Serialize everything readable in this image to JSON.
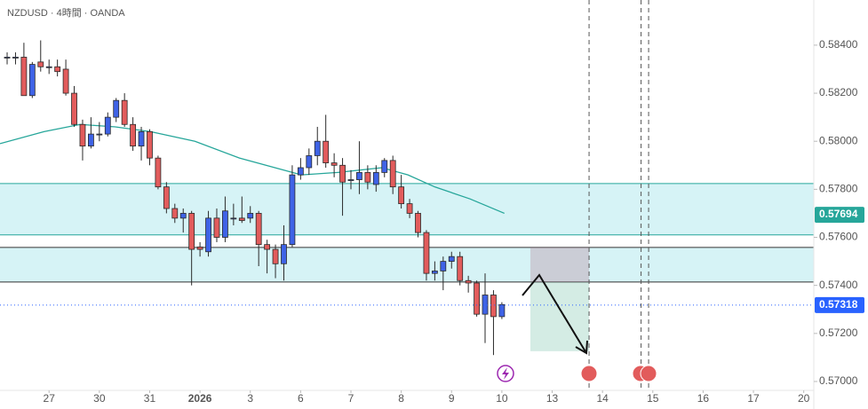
{
  "chart_data": {
    "type": "candlestick",
    "title": "NZDUSD · 4時間 · OANDA",
    "candles": {
      "up_color": "#3f63e6",
      "down_color": "#e25c5c",
      "outline": "#2a2a2a",
      "open": [
        0.5835,
        0.5835,
        0.5835,
        0.5819,
        0.5833,
        0.5831,
        0.5831,
        0.583,
        0.582,
        0.5807,
        0.5798,
        0.5803,
        0.5803,
        0.581,
        0.5817,
        0.5807,
        0.5798,
        0.5804,
        0.5793,
        0.5781,
        0.5772,
        0.5768,
        0.577,
        0.5756,
        0.5754,
        0.5768,
        0.576,
        0.5768,
        0.5768,
        0.5768,
        0.577,
        0.5757,
        0.5755,
        0.5749,
        0.5757,
        0.5786,
        0.5789,
        0.5794,
        0.58,
        0.5791,
        0.579,
        0.5784,
        0.5784,
        0.5787,
        0.5782,
        0.5787,
        0.5792,
        0.5781,
        0.5774,
        0.577,
        0.5762,
        0.5745,
        0.5746,
        0.575,
        0.5752,
        0.5742,
        0.5741,
        0.5728,
        0.5736,
        0.5727
      ],
      "high": [
        0.5837,
        0.5837,
        0.5841,
        0.5833,
        0.5842,
        0.5834,
        0.5834,
        0.5834,
        0.5823,
        0.5809,
        0.581,
        0.5808,
        0.5812,
        0.5818,
        0.582,
        0.581,
        0.5806,
        0.5805,
        0.5794,
        0.5783,
        0.5774,
        0.5772,
        0.5771,
        0.5758,
        0.5771,
        0.5772,
        0.5777,
        0.5774,
        0.5777,
        0.5773,
        0.5771,
        0.5759,
        0.5757,
        0.5765,
        0.579,
        0.5793,
        0.5797,
        0.5806,
        0.5811,
        0.5795,
        0.5793,
        0.5788,
        0.58,
        0.579,
        0.579,
        0.5793,
        0.5794,
        0.5786,
        0.5776,
        0.5771,
        0.5763,
        0.575,
        0.5752,
        0.5754,
        0.5754,
        0.5744,
        0.5742,
        0.5745,
        0.5738,
        0.5733
      ],
      "low": [
        0.5832,
        0.5832,
        0.5819,
        0.5818,
        0.5829,
        0.5828,
        0.5827,
        0.5819,
        0.5806,
        0.5792,
        0.5797,
        0.58,
        0.5802,
        0.5808,
        0.5806,
        0.5796,
        0.5792,
        0.579,
        0.578,
        0.577,
        0.5766,
        0.5762,
        0.574,
        0.5752,
        0.5752,
        0.5758,
        0.5758,
        0.5765,
        0.5766,
        0.5766,
        0.5748,
        0.5745,
        0.5743,
        0.5742,
        0.5756,
        0.5784,
        0.5786,
        0.579,
        0.5789,
        0.5785,
        0.5769,
        0.578,
        0.5778,
        0.578,
        0.5779,
        0.5785,
        0.5778,
        0.5772,
        0.5768,
        0.576,
        0.5742,
        0.5742,
        0.5738,
        0.5747,
        0.574,
        0.5737,
        0.5727,
        0.5716,
        0.5711,
        0.5726
      ],
      "close": [
        0.5835,
        0.5835,
        0.5819,
        0.5832,
        0.5831,
        0.5831,
        0.5829,
        0.582,
        0.5807,
        0.5798,
        0.5803,
        0.5803,
        0.581,
        0.5817,
        0.5807,
        0.5798,
        0.5804,
        0.5793,
        0.5781,
        0.5772,
        0.5768,
        0.577,
        0.5755,
        0.5755,
        0.5768,
        0.576,
        0.5771,
        0.5768,
        0.5767,
        0.577,
        0.5757,
        0.5755,
        0.5749,
        0.5757,
        0.5786,
        0.5789,
        0.5794,
        0.58,
        0.5791,
        0.579,
        0.5783,
        0.5784,
        0.5787,
        0.5783,
        0.5787,
        0.5792,
        0.5781,
        0.5774,
        0.577,
        0.5762,
        0.5745,
        0.5746,
        0.575,
        0.5752,
        0.5742,
        0.5741,
        0.5728,
        0.5736,
        0.5727,
        0.5732
      ]
    },
    "ma": {
      "color": "#26a69a",
      "x": [
        -0.85,
        4.4,
        8.7,
        12.9,
        17.1,
        22.4,
        27.7,
        33,
        35.1,
        39.4,
        44.7,
        47.8,
        51,
        55.2,
        59.3
      ],
      "values": [
        0.5799,
        0.5804,
        0.5807,
        0.5806,
        0.5804,
        0.58,
        0.5793,
        0.5788,
        0.5786,
        0.5787,
        0.5789,
        0.5786,
        0.5781,
        0.5776,
        0.577
      ]
    },
    "zones": [
      {
        "top": 0.57824,
        "bottom": 0.5761,
        "color": "#d6f3f6",
        "line": "#26a69a"
      },
      {
        "top": 0.57558,
        "bottom": 0.57414,
        "color": "#d6f3f6",
        "line": "#333333"
      }
    ],
    "position": {
      "x0": 62.4,
      "x1": 69.4,
      "top": 0.57558,
      "entry": 0.57414,
      "bottom": 0.57126
    },
    "event_lines": [
      69.4,
      75.6,
      76.5
    ],
    "price_labels": [
      {
        "value": 0.57694,
        "color": "#26a69a"
      },
      {
        "value": 0.57318,
        "color": "#2962ff"
      }
    ],
    "xlim": [
      -0.85,
      96.2
    ],
    "ylim": [
      0.56963,
      0.58588
    ],
    "yticks": [
      {
        "value": 0.584,
        "label": "0.58400"
      },
      {
        "value": 0.582,
        "label": "0.58200"
      },
      {
        "value": 0.58,
        "label": "0.58000"
      },
      {
        "value": 0.578,
        "label": "0.57800"
      },
      {
        "value": 0.576,
        "label": "0.57600"
      },
      {
        "value": 0.574,
        "label": "0.57400"
      },
      {
        "value": 0.572,
        "label": "0.57200"
      },
      {
        "value": 0.57,
        "label": "0.57000"
      }
    ],
    "xticks": [
      {
        "value": 5,
        "label": "27"
      },
      {
        "value": 11,
        "label": "30"
      },
      {
        "value": 17,
        "label": "31"
      },
      {
        "value": 23,
        "label": "2026"
      },
      {
        "value": 29,
        "label": "3"
      },
      {
        "value": 35,
        "label": "6"
      },
      {
        "value": 41,
        "label": "7"
      },
      {
        "value": 47,
        "label": "8"
      },
      {
        "value": 53,
        "label": "9"
      },
      {
        "value": 59,
        "label": "10"
      },
      {
        "value": 65,
        "label": "13"
      },
      {
        "value": 71,
        "label": "14"
      },
      {
        "value": 77,
        "label": "15"
      },
      {
        "value": 83,
        "label": "16"
      },
      {
        "value": 89,
        "label": "17"
      },
      {
        "value": 95,
        "label": "20"
      }
    ]
  }
}
